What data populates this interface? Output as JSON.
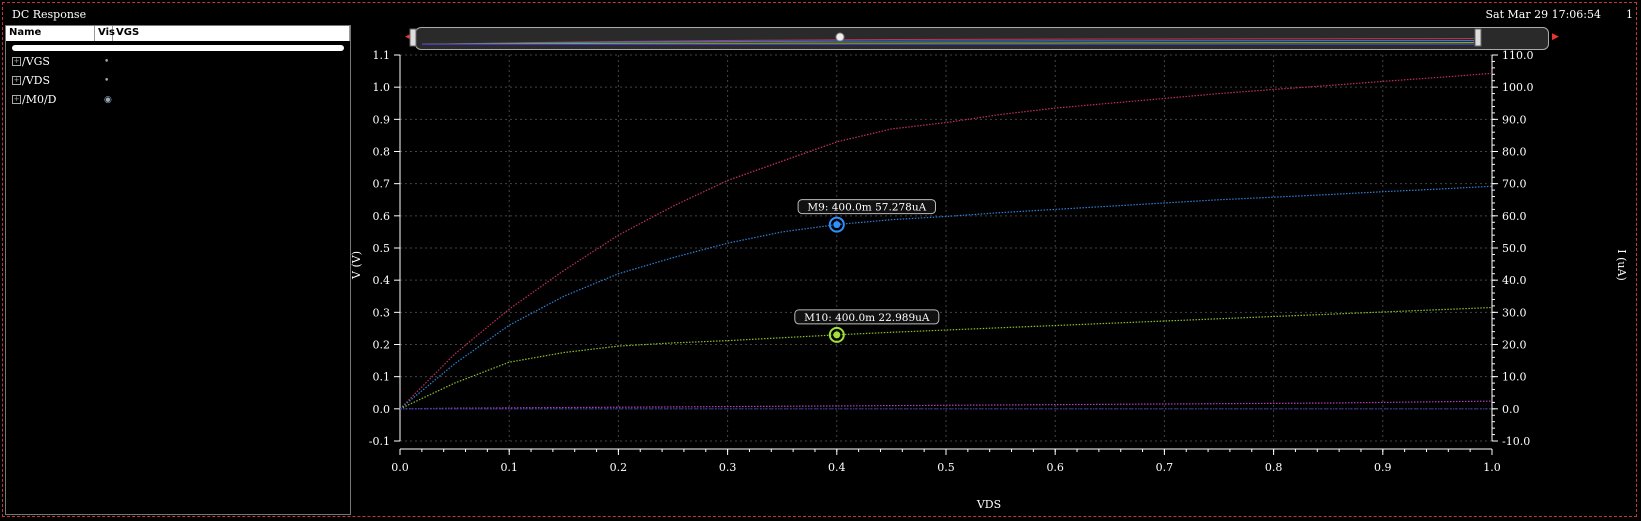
{
  "window": {
    "title": "DC Response",
    "timestamp": "Sat Mar 29 17:06:54",
    "corner_number": "1"
  },
  "signal_panel": {
    "headers": {
      "name": "Name",
      "vis": "Vis",
      "vgs": "VGS"
    },
    "signals": [
      {
        "label": "/VGS",
        "vis_icon": "dot-icon"
      },
      {
        "label": "/VDS",
        "vis_icon": "dot-icon"
      },
      {
        "label": "/M0/D",
        "vis_icon": "eye-icon"
      }
    ]
  },
  "chart_data": {
    "type": "line",
    "xlabel": "VDS",
    "ylabel": "V (V)",
    "y2label": "I (uA)",
    "xlim": [
      0.0,
      1.0
    ],
    "ylim": [
      -0.1,
      1.1
    ],
    "y2lim": [
      -10.0,
      110.0
    ],
    "grid": true,
    "x_ticks": [
      "0.0",
      "0.1",
      "0.2",
      "0.3",
      "0.4",
      "0.5",
      "0.6",
      "0.7",
      "0.8",
      "0.9",
      "1.0"
    ],
    "y_ticks": [
      "-0.1",
      "0.0",
      "0.1",
      "0.2",
      "0.3",
      "0.4",
      "0.5",
      "0.6",
      "0.7",
      "0.8",
      "0.9",
      "1.0",
      "1.1"
    ],
    "y2_ticks": [
      "-10.0",
      "0.0",
      "10.0",
      "20.0",
      "30.0",
      "40.0",
      "50.0",
      "60.0",
      "70.0",
      "80.0",
      "90.0",
      "100.0",
      "110.0"
    ],
    "x": [
      0.0,
      0.05,
      0.1,
      0.15,
      0.2,
      0.25,
      0.3,
      0.35,
      0.4,
      0.45,
      0.5,
      0.55,
      0.6,
      0.65,
      0.7,
      0.75,
      0.8,
      0.85,
      0.9,
      0.95,
      1.0
    ],
    "series": [
      {
        "color": "#c0305a",
        "axis": "right",
        "values": [
          0,
          17,
          31,
          43,
          54,
          63,
          71,
          77,
          83,
          87,
          89,
          91.5,
          93.5,
          95,
          96.5,
          98,
          99.3,
          100.5,
          101.8,
          103,
          104.3
        ]
      },
      {
        "color": "#2f7fd6",
        "axis": "right",
        "values": [
          0,
          14,
          26,
          35,
          42,
          47,
          51.5,
          55,
          57.3,
          58.8,
          59.8,
          61,
          62,
          63,
          64,
          65,
          65.8,
          66.6,
          67.5,
          68.3,
          69.2
        ]
      },
      {
        "color": "#8bbf2a",
        "axis": "right",
        "values": [
          0,
          8,
          14.5,
          17.5,
          19.5,
          20.5,
          21.2,
          22.1,
          23.0,
          23.8,
          24.5,
          25.2,
          25.9,
          26.6,
          27.3,
          28.0,
          28.7,
          29.4,
          30.1,
          30.8,
          31.5
        ]
      },
      {
        "color": "#b040c0",
        "axis": "right",
        "values": [
          0,
          0.2,
          0.3,
          0.4,
          0.5,
          0.6,
          0.7,
          0.8,
          0.9,
          1.0,
          1.1,
          1.2,
          1.3,
          1.4,
          1.5,
          1.6,
          1.7,
          1.8,
          2.0,
          2.2,
          2.4
        ]
      },
      {
        "color": "#3a3ab0",
        "axis": "right",
        "values": [
          0,
          0,
          0,
          0,
          0,
          0,
          0,
          0,
          0,
          0,
          0,
          0,
          0,
          0,
          0,
          0,
          0,
          0,
          0,
          0,
          0
        ]
      }
    ],
    "markers": [
      {
        "label": "M9: 400.0m 57.278uA",
        "x": 0.4,
        "y": 57.278,
        "color": "#2f8fff"
      },
      {
        "label": "M10: 400.0m 22.989uA",
        "x": 0.4,
        "y": 22.989,
        "color": "#9fe03a"
      }
    ]
  }
}
